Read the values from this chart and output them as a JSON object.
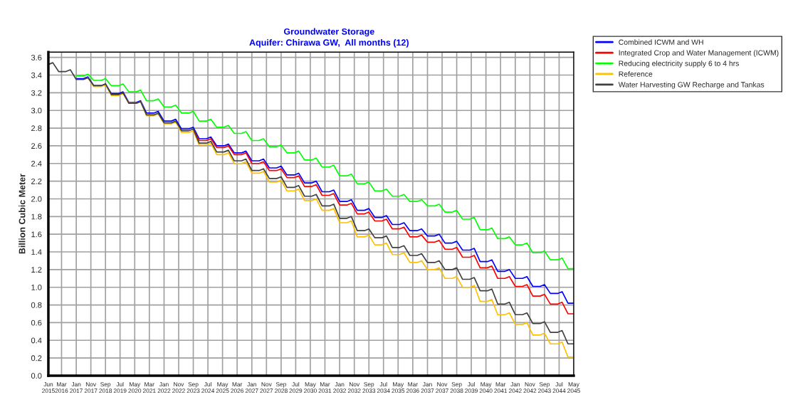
{
  "chart_data": {
    "type": "line",
    "title": "Groundwater Storage",
    "subtitle": "Aquifer: Chirawa GW,  All months (12)",
    "ylabel": "Billion Cubic Meter",
    "x": [
      "2015-06",
      "2015-09",
      "2016-01",
      "2016-06",
      "2016-09",
      "2017-01",
      "2017-06",
      "2017-09",
      "2018-01",
      "2018-06",
      "2018-09",
      "2019-01",
      "2019-06",
      "2019-09",
      "2020-01",
      "2020-06",
      "2020-09",
      "2021-01",
      "2021-06",
      "2021-09",
      "2022-01",
      "2022-06",
      "2022-09",
      "2023-01",
      "2023-06",
      "2023-09",
      "2024-01",
      "2024-06",
      "2024-09",
      "2025-01",
      "2025-06",
      "2025-09",
      "2026-01",
      "2026-06",
      "2026-09",
      "2027-01",
      "2027-06",
      "2027-09",
      "2028-01",
      "2028-06",
      "2028-09",
      "2029-01",
      "2029-06",
      "2029-09",
      "2030-01",
      "2030-06",
      "2030-09",
      "2031-01",
      "2031-06",
      "2031-09",
      "2032-01",
      "2032-06",
      "2032-09",
      "2033-01",
      "2033-06",
      "2033-09",
      "2034-01",
      "2034-06",
      "2034-09",
      "2035-01",
      "2035-06",
      "2035-09",
      "2036-01",
      "2036-06",
      "2036-09",
      "2037-01",
      "2037-06",
      "2037-09",
      "2038-01",
      "2038-06",
      "2038-09",
      "2039-01",
      "2039-06",
      "2039-09",
      "2040-01",
      "2040-06",
      "2040-09",
      "2041-01",
      "2041-06",
      "2041-09",
      "2042-01",
      "2042-06",
      "2042-09",
      "2043-01",
      "2043-06",
      "2043-09",
      "2044-01",
      "2044-06",
      "2044-09",
      "2045-01",
      "2045-05"
    ],
    "series": [
      {
        "name": "Combined ICWM and WH",
        "color": "#0000ff",
        "values": [
          null,
          null,
          null,
          null,
          null,
          3.36,
          3.36,
          3.38,
          3.28,
          3.28,
          3.3,
          3.19,
          3.19,
          3.21,
          3.09,
          3.09,
          3.11,
          2.97,
          2.97,
          2.99,
          2.88,
          2.88,
          2.9,
          2.79,
          2.79,
          2.81,
          2.68,
          2.68,
          2.7,
          2.6,
          2.6,
          2.62,
          2.52,
          2.52,
          2.54,
          2.43,
          2.43,
          2.45,
          2.35,
          2.35,
          2.37,
          2.27,
          2.27,
          2.29,
          2.18,
          2.18,
          2.2,
          2.08,
          2.08,
          2.1,
          1.97,
          1.97,
          1.99,
          1.87,
          1.87,
          1.89,
          1.79,
          1.79,
          1.81,
          1.71,
          1.71,
          1.73,
          1.64,
          1.64,
          1.66,
          1.58,
          1.58,
          1.6,
          1.5,
          1.5,
          1.52,
          1.42,
          1.42,
          1.44,
          1.29,
          1.29,
          1.31,
          1.18,
          1.18,
          1.2,
          1.1,
          1.1,
          1.12,
          1.01,
          1.01,
          1.03,
          0.93,
          0.93,
          0.95,
          0.82,
          0.82
        ]
      },
      {
        "name": "Integrated Crop and Water Management (ICWM)",
        "color": "#ff0000",
        "values": [
          null,
          null,
          null,
          null,
          null,
          null,
          null,
          null,
          null,
          null,
          null,
          null,
          null,
          null,
          null,
          null,
          null,
          null,
          null,
          null,
          null,
          null,
          null,
          null,
          null,
          2.79,
          2.66,
          2.66,
          2.68,
          2.58,
          2.58,
          2.6,
          2.5,
          2.5,
          2.52,
          2.4,
          2.4,
          2.42,
          2.32,
          2.32,
          2.34,
          2.24,
          2.24,
          2.26,
          2.14,
          2.14,
          2.16,
          2.04,
          2.04,
          2.06,
          1.93,
          1.93,
          1.95,
          1.83,
          1.83,
          1.85,
          1.75,
          1.75,
          1.77,
          1.66,
          1.66,
          1.68,
          1.57,
          1.57,
          1.59,
          1.51,
          1.51,
          1.53,
          1.43,
          1.43,
          1.45,
          1.34,
          1.34,
          1.36,
          1.22,
          1.22,
          1.24,
          1.1,
          1.1,
          1.12,
          1.01,
          1.01,
          1.03,
          0.9,
          0.9,
          0.92,
          0.81,
          0.81,
          0.83,
          0.7,
          0.7
        ]
      },
      {
        "name": "Reducing electricity supply 6 to 4 hrs",
        "color": "#00ff00",
        "values": [
          null,
          null,
          null,
          null,
          null,
          3.39,
          3.39,
          3.41,
          3.34,
          3.34,
          3.36,
          3.28,
          3.28,
          3.3,
          3.21,
          3.21,
          3.23,
          3.11,
          3.11,
          3.13,
          3.04,
          3.04,
          3.06,
          2.97,
          2.97,
          2.99,
          2.88,
          2.88,
          2.9,
          2.81,
          2.81,
          2.83,
          2.74,
          2.74,
          2.76,
          2.66,
          2.66,
          2.68,
          2.59,
          2.59,
          2.61,
          2.52,
          2.52,
          2.54,
          2.44,
          2.44,
          2.46,
          2.36,
          2.36,
          2.38,
          2.26,
          2.26,
          2.28,
          2.17,
          2.17,
          2.19,
          2.09,
          2.09,
          2.11,
          2.03,
          2.03,
          2.05,
          1.97,
          1.97,
          1.99,
          1.92,
          1.92,
          1.94,
          1.85,
          1.85,
          1.87,
          1.77,
          1.77,
          1.79,
          1.65,
          1.65,
          1.67,
          1.55,
          1.55,
          1.57,
          1.48,
          1.48,
          1.5,
          1.39,
          1.39,
          1.41,
          1.31,
          1.31,
          1.33,
          1.21,
          1.21
        ]
      },
      {
        "name": "Reference",
        "color": "#ffc000",
        "values": [
          null,
          null,
          null,
          null,
          null,
          null,
          null,
          3.37,
          3.27,
          3.27,
          3.29,
          3.17,
          3.17,
          3.19,
          3.08,
          3.08,
          3.1,
          2.94,
          2.94,
          2.96,
          2.85,
          2.85,
          2.87,
          2.75,
          2.75,
          2.77,
          2.61,
          2.61,
          2.63,
          2.5,
          2.5,
          2.52,
          2.4,
          2.4,
          2.42,
          2.29,
          2.29,
          2.31,
          2.19,
          2.19,
          2.21,
          2.09,
          2.09,
          2.11,
          1.98,
          1.98,
          2.0,
          1.87,
          1.87,
          1.89,
          1.73,
          1.73,
          1.75,
          1.57,
          1.57,
          1.59,
          1.48,
          1.48,
          1.5,
          1.37,
          1.37,
          1.39,
          1.28,
          1.28,
          1.3,
          1.2,
          1.2,
          1.22,
          1.1,
          1.1,
          1.12,
          1.0,
          1.0,
          1.02,
          0.84,
          0.84,
          0.86,
          0.69,
          0.69,
          0.71,
          0.58,
          0.58,
          0.6,
          0.46,
          0.46,
          0.48,
          0.36,
          0.36,
          0.38,
          0.21,
          0.21
        ]
      },
      {
        "name": "Water Harvesting GW Recharge and Tankas",
        "color": "#404040",
        "values": [
          3.52,
          3.54,
          3.44,
          3.44,
          3.46,
          3.35,
          3.35,
          3.37,
          3.28,
          3.28,
          3.3,
          3.18,
          3.18,
          3.2,
          3.08,
          3.08,
          3.1,
          2.95,
          2.95,
          2.97,
          2.86,
          2.86,
          2.88,
          2.77,
          2.77,
          2.79,
          2.63,
          2.63,
          2.65,
          2.53,
          2.53,
          2.55,
          2.43,
          2.43,
          2.45,
          2.32,
          2.32,
          2.34,
          2.23,
          2.23,
          2.25,
          2.13,
          2.13,
          2.15,
          2.03,
          2.03,
          2.05,
          1.92,
          1.92,
          1.94,
          1.78,
          1.78,
          1.8,
          1.64,
          1.64,
          1.66,
          1.56,
          1.56,
          1.58,
          1.45,
          1.45,
          1.47,
          1.36,
          1.36,
          1.38,
          1.28,
          1.28,
          1.3,
          1.2,
          1.2,
          1.22,
          1.09,
          1.09,
          1.11,
          0.96,
          0.96,
          0.98,
          0.81,
          0.81,
          0.83,
          0.69,
          0.69,
          0.71,
          0.59,
          0.59,
          0.61,
          0.49,
          0.49,
          0.51,
          0.36,
          0.36
        ]
      }
    ],
    "xlim": [
      "2015-06",
      "2045-05"
    ],
    "xticks": [
      {
        "value": "2015-06",
        "label": "Jun\n2015"
      },
      {
        "value": "2016-03",
        "label": "Mar\n2016"
      },
      {
        "value": "2017-01",
        "label": "Jan\n2017"
      },
      {
        "value": "2017-11",
        "label": "Nov\n2017"
      },
      {
        "value": "2018-09",
        "label": "Sep\n2018"
      },
      {
        "value": "2019-07",
        "label": "Jul\n2019"
      },
      {
        "value": "2020-05",
        "label": "May\n2020"
      },
      {
        "value": "2021-03",
        "label": "Mar\n2021"
      },
      {
        "value": "2022-01",
        "label": "Jan\n2022"
      },
      {
        "value": "2022-11",
        "label": "Nov\n2022"
      },
      {
        "value": "2023-09",
        "label": "Sep\n2023"
      },
      {
        "value": "2024-07",
        "label": "Jul\n2024"
      },
      {
        "value": "2025-05",
        "label": "May\n2025"
      },
      {
        "value": "2026-03",
        "label": "Mar\n2026"
      },
      {
        "value": "2027-01",
        "label": "Jan\n2027"
      },
      {
        "value": "2027-11",
        "label": "Nov\n2027"
      },
      {
        "value": "2028-09",
        "label": "Sep\n2028"
      },
      {
        "value": "2029-07",
        "label": "Jul\n2029"
      },
      {
        "value": "2030-05",
        "label": "May\n2030"
      },
      {
        "value": "2031-03",
        "label": "Mar\n2031"
      },
      {
        "value": "2032-01",
        "label": "Jan\n2032"
      },
      {
        "value": "2032-11",
        "label": "Nov\n2032"
      },
      {
        "value": "2033-09",
        "label": "Sep\n2033"
      },
      {
        "value": "2034-07",
        "label": "Jul\n2034"
      },
      {
        "value": "2035-05",
        "label": "May\n2035"
      },
      {
        "value": "2036-03",
        "label": "Mar\n2036"
      },
      {
        "value": "2037-01",
        "label": "Jan\n2037"
      },
      {
        "value": "2037-11",
        "label": "Nov\n2037"
      },
      {
        "value": "2038-09",
        "label": "Sep\n2038"
      },
      {
        "value": "2039-07",
        "label": "Jul\n2039"
      },
      {
        "value": "2040-05",
        "label": "May\n2040"
      },
      {
        "value": "2041-03",
        "label": "Mar\n2041"
      },
      {
        "value": "2042-01",
        "label": "Jan\n2042"
      },
      {
        "value": "2042-11",
        "label": "Nov\n2042"
      },
      {
        "value": "2043-09",
        "label": "Sep\n2043"
      },
      {
        "value": "2044-07",
        "label": "Jul\n2044"
      },
      {
        "value": "2045-05",
        "label": "May\n2045"
      }
    ],
    "ylim": [
      0,
      3.66
    ],
    "yticks": [
      {
        "value": 0,
        "label": "0.0"
      },
      0.2,
      0.4,
      0.6,
      0.8,
      {
        "value": 1,
        "label": "1.0"
      },
      1.2,
      1.4,
      1.6,
      1.8,
      {
        "value": 2,
        "label": "2.0"
      },
      2.2,
      2.4,
      2.6,
      2.8,
      {
        "value": 3,
        "label": "3.0"
      },
      3.2,
      3.4,
      3.6
    ],
    "grid": true,
    "legend": "top right",
    "marker": "none",
    "line_style": "solid"
  }
}
